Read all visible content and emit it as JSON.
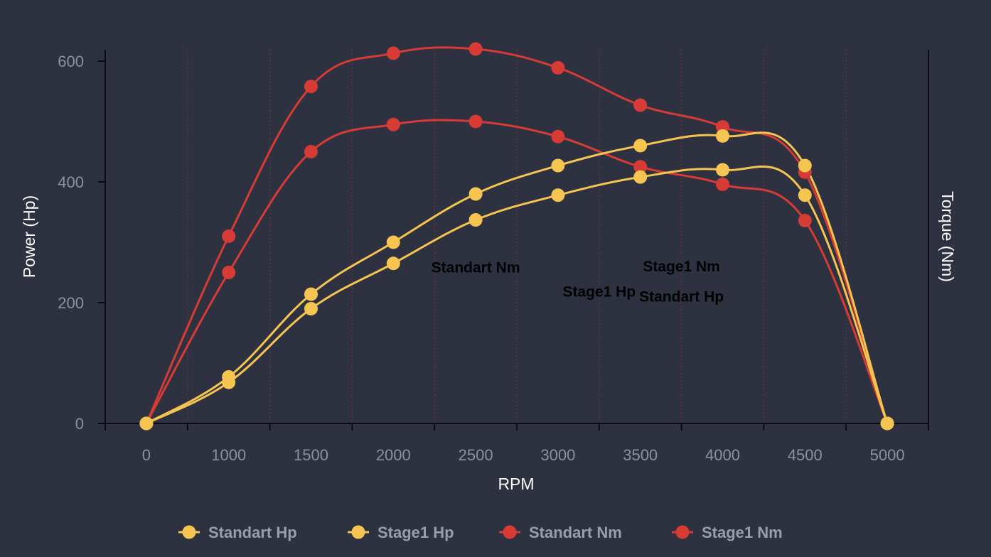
{
  "chart_data": {
    "type": "line",
    "x": [
      0,
      1000,
      1500,
      2000,
      2500,
      3000,
      3500,
      4000,
      4500,
      5000
    ],
    "xlabel": "RPM",
    "ylabel": "Power (Hp)",
    "y2label": "Torque (Nm)",
    "ylim": [
      0,
      620
    ],
    "yticks": [
      0,
      200,
      400,
      600
    ],
    "grid": "vertical dotted",
    "legend_position": "bottom",
    "series": [
      {
        "name": "Standart Hp",
        "color": "#f5c451",
        "values": [
          0,
          68,
          190,
          265,
          337,
          378,
          408,
          420,
          378,
          0
        ]
      },
      {
        "name": "Stage1 Hp",
        "color": "#f5c451",
        "values": [
          0,
          77,
          214,
          300,
          380,
          427,
          460,
          476,
          427,
          0
        ]
      },
      {
        "name": "Standart Nm",
        "color": "#d63b36",
        "values": [
          0,
          250,
          450,
          495,
          500,
          475,
          425,
          396,
          336,
          0
        ]
      },
      {
        "name": "Stage1 Nm",
        "color": "#d63b36",
        "values": [
          0,
          310,
          558,
          613,
          620,
          589,
          527,
          491,
          416,
          0
        ]
      }
    ],
    "annotations": [
      {
        "text": "Standart Nm",
        "x": 2500,
        "y": 250
      },
      {
        "text": "Stage1 Hp",
        "x": 3250,
        "y": 210
      },
      {
        "text": "Standart Hp",
        "x": 3750,
        "y": 202
      },
      {
        "text": "Stage1 Nm",
        "x": 3750,
        "y": 252
      }
    ]
  }
}
